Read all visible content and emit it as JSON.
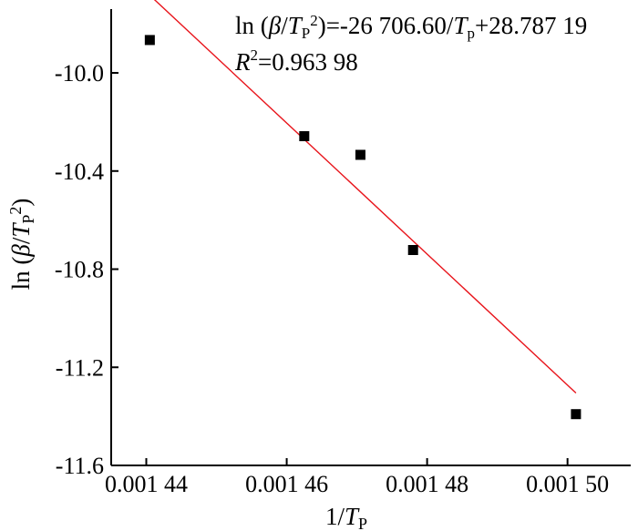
{
  "chart_data": {
    "type": "scatter",
    "title": "",
    "xlabel": "1/TP",
    "ylabel": "ln (β/TP²)",
    "xlim": [
      0.001435,
      0.001509
    ],
    "ylim": [
      -11.6,
      -9.74
    ],
    "x_ticks": [
      {
        "value": 0.00144,
        "label": "0.001 44"
      },
      {
        "value": 0.00146,
        "label": "0.001 46"
      },
      {
        "value": 0.00148,
        "label": "0.001 48"
      },
      {
        "value": 0.0015,
        "label": "0.001 50"
      }
    ],
    "y_ticks": [
      {
        "value": -10.0,
        "label": "-10.0"
      },
      {
        "value": -10.4,
        "label": "-10.4"
      },
      {
        "value": -10.8,
        "label": "-10.8"
      },
      {
        "value": -11.2,
        "label": "-11.2"
      },
      {
        "value": -11.6,
        "label": "-11.6"
      }
    ],
    "series": [
      {
        "type": "scatter",
        "marker": "square",
        "color": "#000000",
        "points": [
          {
            "x": 0.0014405,
            "y": -9.866
          },
          {
            "x": 0.0014625,
            "y": -10.258
          },
          {
            "x": 0.0014705,
            "y": -10.334
          },
          {
            "x": 0.001478,
            "y": -10.722
          },
          {
            "x": 0.0015012,
            "y": -11.391
          }
        ]
      },
      {
        "type": "line",
        "color": "#e8141b",
        "fit": {
          "slope": -26706.6,
          "intercept": 28.78719
        },
        "x_range": [
          0.0014405,
          0.0015012
        ]
      }
    ],
    "annotations": {
      "equation": "ln (β/TP²)=-26 706.60/Tp+28.787 19",
      "r_squared": "R²=0.963 98"
    },
    "grid": false,
    "legend": "none"
  }
}
